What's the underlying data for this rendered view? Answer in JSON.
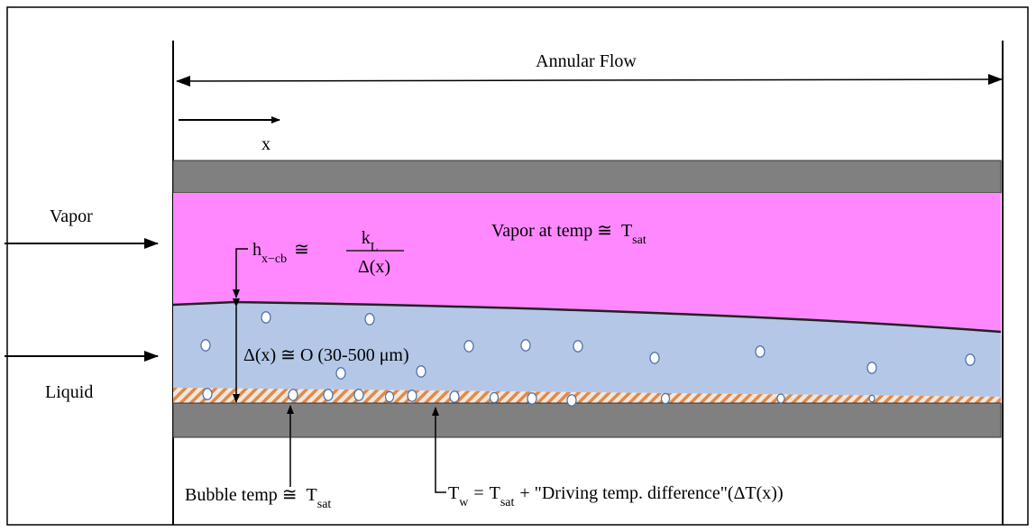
{
  "header": {
    "title": "Annular Flow",
    "x_label": "x"
  },
  "inlets": {
    "vapor": "Vapor",
    "liquid": "Liquid"
  },
  "formula": {
    "h": "h",
    "h_sub": "x−cb",
    "approx": "≅",
    "numerator": "k",
    "numerator_sub": "L",
    "denominator": "Δ(x)"
  },
  "vapor_note": {
    "text": "Vapor at temp ≅",
    "t": "T",
    "t_sub": "sat"
  },
  "thickness": "Δ(x) ≅ O (30-500 μm)",
  "bubble_note": {
    "text": "Bubble temp ≅",
    "t": "T",
    "t_sub": "sat"
  },
  "wall_note": {
    "t": "T",
    "t_sub": "w",
    "eq": "=",
    "t2": "T",
    "t2_sub": "sat",
    "rest": "+ \"Driving temp. difference\"(ΔT(x))"
  }
}
